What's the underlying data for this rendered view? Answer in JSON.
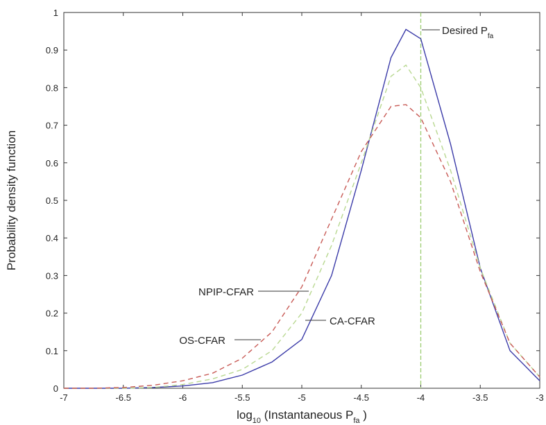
{
  "chart_data": {
    "type": "line",
    "x_label": [
      "log",
      "10",
      " (Instantaneous P",
      "fa",
      " )"
    ],
    "y_label": "Probability density function",
    "x": [
      -7,
      -6.75,
      -6.5,
      -6.25,
      -6,
      -5.75,
      -5.5,
      -5.25,
      -5,
      -4.75,
      -4.5,
      -4.25,
      -4.125,
      -4,
      -3.75,
      -3.5,
      -3.25,
      -3
    ],
    "series": [
      {
        "name": "CA-CFAR",
        "color": "#3a3aa8",
        "dash": "none",
        "values": [
          0,
          0,
          0,
          0.002,
          0.006,
          0.015,
          0.035,
          0.07,
          0.13,
          0.3,
          0.58,
          0.88,
          0.955,
          0.93,
          0.65,
          0.32,
          0.1,
          0.02
        ]
      },
      {
        "name": "NPIP-CFAR",
        "color": "#b8d890",
        "dash": "7 5",
        "values": [
          0,
          0,
          0,
          0.002,
          0.01,
          0.025,
          0.05,
          0.1,
          0.2,
          0.38,
          0.6,
          0.83,
          0.86,
          0.8,
          0.58,
          0.32,
          0.12,
          0.03
        ]
      },
      {
        "name": "OS-CFAR",
        "color": "#c85a55",
        "dash": "7 5",
        "values": [
          0,
          0,
          0.002,
          0.008,
          0.02,
          0.04,
          0.08,
          0.15,
          0.27,
          0.45,
          0.63,
          0.75,
          0.755,
          0.72,
          0.55,
          0.31,
          0.12,
          0.03
        ]
      }
    ],
    "vline": {
      "x": -4,
      "color": "#9ccc70",
      "label": [
        "Desired P",
        "fa"
      ]
    },
    "xlim": [
      -7,
      -3
    ],
    "xticks": [
      -7,
      -6.5,
      -6,
      -5.5,
      -5,
      -4.5,
      -4,
      -3.5,
      -3
    ],
    "ylim": [
      0,
      1
    ],
    "yticks": [
      0,
      0.1,
      0.2,
      0.3,
      0.4,
      0.5,
      0.6,
      0.7,
      0.8,
      0.9,
      1
    ]
  }
}
